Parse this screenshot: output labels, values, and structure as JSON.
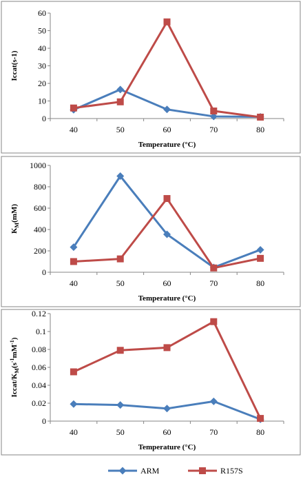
{
  "colors": {
    "ARM": "#4a7ebb",
    "R157S": "#be4b48",
    "axis": "#868686",
    "frame": "#868686"
  },
  "legend": {
    "position": "bottom",
    "entries": [
      {
        "name": "ARM",
        "marker": "diamond"
      },
      {
        "name": "R157S",
        "marker": "square"
      }
    ]
  },
  "chart_data": [
    {
      "type": "line",
      "xlabel": "Temperature (°C)",
      "ylabel": "Iccat(s-1)",
      "x": [
        40,
        50,
        60,
        70,
        80
      ],
      "ylim": [
        0,
        60
      ],
      "yticks": [
        0,
        10,
        20,
        30,
        40,
        50,
        60
      ],
      "ytick_labels": [
        "0",
        "10",
        "20",
        "30",
        "40",
        "50",
        "60"
      ],
      "grid": false,
      "series": [
        {
          "name": "ARM",
          "values": [
            5,
            16.5,
            5.2,
            1.2,
            1
          ]
        },
        {
          "name": "R157S",
          "values": [
            6,
            9.5,
            55,
            4.3,
            0.8
          ]
        }
      ]
    },
    {
      "type": "line",
      "xlabel": "Temperature (°C)",
      "ylabel": "KM(mM)",
      "x": [
        40,
        50,
        60,
        70,
        80
      ],
      "ylim": [
        0,
        1000
      ],
      "yticks": [
        0,
        200,
        400,
        600,
        800,
        1000
      ],
      "ytick_labels": [
        "0",
        "200",
        "400",
        "600",
        "800",
        "1000"
      ],
      "grid": false,
      "series": [
        {
          "name": "ARM",
          "values": [
            235,
            900,
            355,
            45,
            210
          ]
        },
        {
          "name": "R157S",
          "values": [
            100,
            125,
            690,
            40,
            130
          ]
        }
      ]
    },
    {
      "type": "line",
      "xlabel": "Temperature (°C)",
      "ylabel": "Iccat/KM(s-1mM-1)",
      "x": [
        40,
        50,
        60,
        70,
        80
      ],
      "ylim": [
        0,
        0.12
      ],
      "yticks": [
        0,
        0.02,
        0.04,
        0.06,
        0.08,
        0.1,
        0.12
      ],
      "ytick_labels": [
        "0",
        "0.02",
        "0.04",
        "0.06",
        "0.08",
        "0.1",
        "0.12"
      ],
      "grid": false,
      "series": [
        {
          "name": "ARM",
          "values": [
            0.019,
            0.018,
            0.014,
            0.022,
            0.002
          ]
        },
        {
          "name": "R157S",
          "values": [
            0.055,
            0.079,
            0.082,
            0.111,
            0.003
          ]
        }
      ]
    }
  ]
}
